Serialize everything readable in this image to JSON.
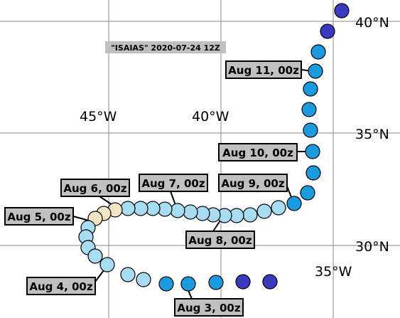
{
  "title": "\"ISAIAS\" 2020-07-24 12Z",
  "grid_labels": {
    "lon": [
      "45°W",
      "40°W",
      "35°W"
    ],
    "lat": [
      "40°N",
      "35°N",
      "30°N"
    ]
  },
  "labels": [
    "Aug 11, 00z",
    "Aug 10, 00z",
    "Aug 9, 00z",
    "Aug 7, 00z",
    "Aug 6, 00z",
    "Aug 5, 00z",
    "Aug 8, 00z",
    "Aug 4, 00z",
    "Aug 3, 00z"
  ]
}
